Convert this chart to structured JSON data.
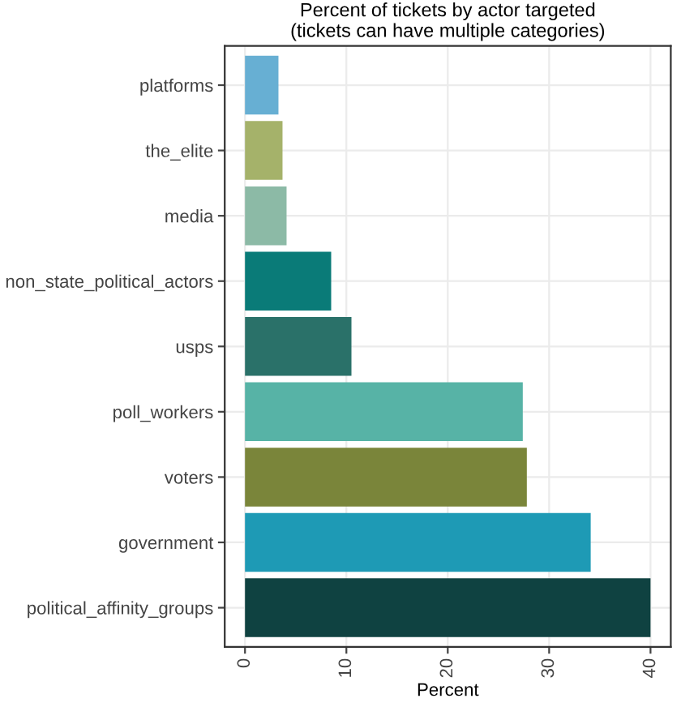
{
  "chart_data": {
    "type": "bar",
    "orientation": "horizontal",
    "title": "Percent of tickets by actor targeted\n(tickets can have multiple categories)",
    "xlabel": "Percent",
    "categories": [
      "platforms",
      "the_elite",
      "media",
      "non_state_political_actors",
      "usps",
      "poll_workers",
      "voters",
      "government",
      "political_affinity_groups"
    ],
    "values": [
      3.3,
      3.7,
      4.1,
      8.5,
      10.5,
      27.4,
      27.8,
      34.1,
      40
    ],
    "colors": [
      "#67afd3",
      "#a5b26a",
      "#8cbaa6",
      "#0a7b78",
      "#2a7169",
      "#57b3a6",
      "#7a853a",
      "#1e9ab5",
      "#0f4241"
    ],
    "xlim": [
      -2,
      42
    ],
    "xticks": [
      0,
      10,
      20,
      30,
      40
    ],
    "grid": true
  }
}
